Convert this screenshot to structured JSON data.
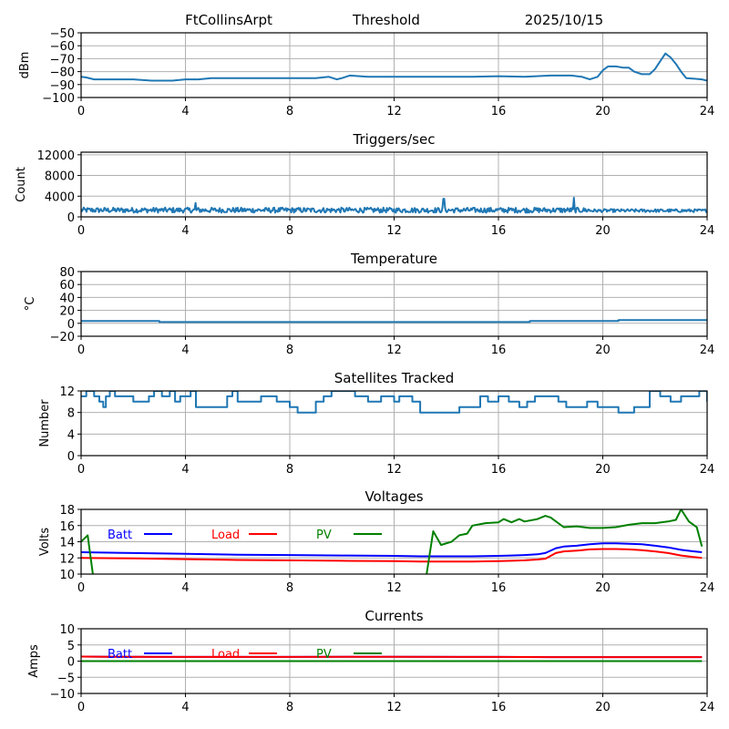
{
  "header": {
    "station": "FtCollinsArpt",
    "panel_title": "Threshold",
    "date": "2025/10/15"
  },
  "chart_data": [
    {
      "type": "line",
      "id": "threshold",
      "title": "",
      "xlabel": "",
      "ylabel": "dBm",
      "xlim": [
        0,
        24
      ],
      "ylim": [
        -100,
        -50
      ],
      "xticks": [
        0,
        4,
        8,
        12,
        16,
        20,
        24
      ],
      "yticks": [
        -50,
        -60,
        -70,
        -80,
        -90,
        -100
      ],
      "ytick_labels": [
        "−50",
        "−60",
        "−70",
        "−80",
        "−90",
        "−100"
      ],
      "grid": true,
      "series": [
        {
          "name": "Threshold",
          "color": "#1f77b4",
          "x": [
            0,
            0.2,
            0.5,
            1,
            2,
            2.7,
            3.5,
            4,
            4.5,
            5,
            6,
            7,
            8,
            8.5,
            9,
            9.5,
            9.8,
            10,
            10.3,
            11,
            12,
            13,
            14,
            15,
            16,
            17,
            18,
            18.8,
            19.2,
            19.5,
            19.8,
            20,
            20.2,
            20.5,
            20.8,
            21,
            21.2,
            21.5,
            21.8,
            22,
            22.2,
            22.4,
            22.6,
            22.8,
            23,
            23.2,
            23.5,
            23.8,
            24
          ],
          "y": [
            -84,
            -84.5,
            -86,
            -86,
            -86,
            -87,
            -87,
            -86,
            -86,
            -85,
            -85,
            -85,
            -85,
            -85,
            -85,
            -84,
            -86,
            -85,
            -83,
            -84,
            -84,
            -84,
            -84,
            -84,
            -83.5,
            -84,
            -83,
            -83,
            -84,
            -86,
            -84,
            -79,
            -76,
            -76,
            -77,
            -77,
            -80,
            -82,
            -82,
            -78,
            -72,
            -66,
            -69,
            -74,
            -80,
            -85,
            -85.5,
            -86,
            -87
          ]
        }
      ]
    },
    {
      "type": "line",
      "id": "triggers",
      "title": "Triggers/sec",
      "xlabel": "",
      "ylabel": "Count",
      "xlim": [
        0,
        24
      ],
      "ylim": [
        0,
        12500
      ],
      "xticks": [
        0,
        4,
        8,
        12,
        16,
        20,
        24
      ],
      "yticks": [
        0,
        4000,
        8000,
        12000
      ],
      "ytick_labels": [
        "0",
        "4000",
        "8000",
        "12000"
      ],
      "grid": true,
      "series": [
        {
          "name": "Triggers/sec",
          "color": "#1f77b4",
          "mean": 1300,
          "noise_amplitude": 1000,
          "spikes": [
            {
              "x": 4.4,
              "y": 2700
            },
            {
              "x": 13.9,
              "y": 3500
            },
            {
              "x": 18.9,
              "y": 3700
            }
          ],
          "quiet_segment": {
            "x0": 19.5,
            "x1": 24,
            "mean": 1200,
            "noise_amplitude": 600
          }
        }
      ]
    },
    {
      "type": "line",
      "id": "temperature",
      "title": "Temperature",
      "xlabel": "",
      "ylabel": "°C",
      "xlim": [
        0,
        24
      ],
      "ylim": [
        -20,
        80
      ],
      "xticks": [
        0,
        4,
        8,
        12,
        16,
        20,
        24
      ],
      "yticks": [
        -20,
        0,
        20,
        40,
        60,
        80
      ],
      "ytick_labels": [
        "−20",
        "0",
        "20",
        "40",
        "60",
        "80"
      ],
      "grid": true,
      "series": [
        {
          "name": "Temperature",
          "color": "#1f77b4",
          "x": [
            0,
            3.0,
            3.0,
            17.2,
            17.2,
            20.6,
            20.6,
            24
          ],
          "y": [
            3.5,
            3.5,
            2,
            2,
            3.5,
            3.5,
            5,
            5
          ]
        }
      ]
    },
    {
      "type": "line",
      "id": "satellites",
      "title": "Satellites Tracked",
      "xlabel": "",
      "ylabel": "Number",
      "xlim": [
        0,
        24
      ],
      "ylim": [
        0,
        12
      ],
      "xticks": [
        0,
        4,
        8,
        12,
        16,
        20,
        24
      ],
      "yticks": [
        0,
        4,
        8,
        12
      ],
      "ytick_labels": [
        "0",
        "4",
        "8",
        "12"
      ],
      "grid": true,
      "series": [
        {
          "name": "Satellites",
          "color": "#1f77b4",
          "x": [
            0,
            0.2,
            0.5,
            0.7,
            0.85,
            0.95,
            1.1,
            1.3,
            2.0,
            2.6,
            2.8,
            3.1,
            3.4,
            3.6,
            3.8,
            4.2,
            4.4,
            4.6,
            5.3,
            5.6,
            5.8,
            6.0,
            6.5,
            6.9,
            7.2,
            7.5,
            8.0,
            8.3,
            8.6,
            9.0,
            9.3,
            9.6,
            9.9,
            10.5,
            11.0,
            11.5,
            12.0,
            12.2,
            12.7,
            13.0,
            13.3,
            14.0,
            14.5,
            15.0,
            15.3,
            15.6,
            16.0,
            16.4,
            16.8,
            17.1,
            17.4,
            18.0,
            18.3,
            18.6,
            19.0,
            19.4,
            19.8,
            20.2,
            20.6,
            21.2,
            21.5,
            21.8,
            22.2,
            22.6,
            23.0,
            23.4,
            23.7,
            24.0
          ],
          "y": [
            11,
            12,
            11,
            10,
            9,
            11,
            12,
            11,
            10,
            11,
            12,
            11,
            12,
            10,
            11,
            12,
            9,
            9,
            9,
            11,
            12,
            10,
            10,
            11,
            11,
            10,
            9,
            8,
            8,
            10,
            11,
            12,
            12,
            11,
            10,
            11,
            10,
            11,
            10,
            8,
            8,
            8,
            9,
            9,
            11,
            10,
            11,
            10,
            9,
            10,
            11,
            11,
            10,
            9,
            9,
            10,
            9,
            9,
            8,
            9,
            9,
            12,
            11,
            10,
            11,
            11,
            12,
            10
          ]
        }
      ]
    },
    {
      "type": "line",
      "id": "voltages",
      "title": "Voltages",
      "xlabel": "",
      "ylabel": "Volts",
      "xlim": [
        0,
        24
      ],
      "ylim": [
        10,
        18
      ],
      "xticks": [
        0,
        4,
        8,
        12,
        16,
        20,
        24
      ],
      "yticks": [
        10,
        12,
        14,
        16,
        18
      ],
      "ytick_labels": [
        "10",
        "12",
        "14",
        "16",
        "18"
      ],
      "grid": true,
      "legend": {
        "placement": "top-left",
        "entries": [
          "Batt",
          "Load",
          "PV"
        ]
      },
      "series": [
        {
          "name": "Batt",
          "color": "#0000ff",
          "x": [
            0,
            2,
            4,
            6,
            8,
            10,
            12,
            13,
            14,
            15,
            16,
            16.5,
            17,
            17.5,
            17.8,
            18.2,
            18.5,
            19,
            19.5,
            20,
            20.5,
            21,
            21.5,
            22,
            22.5,
            23,
            23.5,
            23.8
          ],
          "y": [
            12.7,
            12.6,
            12.5,
            12.4,
            12.35,
            12.3,
            12.25,
            12.2,
            12.2,
            12.2,
            12.25,
            12.3,
            12.35,
            12.45,
            12.6,
            13.2,
            13.4,
            13.5,
            13.7,
            13.8,
            13.8,
            13.75,
            13.7,
            13.5,
            13.3,
            13.0,
            12.8,
            12.7
          ]
        },
        {
          "name": "Load",
          "color": "#ff0000",
          "x": [
            0,
            2,
            4,
            6,
            8,
            10,
            12,
            13,
            14,
            15,
            16,
            16.5,
            17,
            17.5,
            17.8,
            18.2,
            18.5,
            19,
            19.5,
            20,
            20.5,
            21,
            21.5,
            22,
            22.5,
            23,
            23.5,
            23.8
          ],
          "y": [
            12.0,
            11.95,
            11.85,
            11.75,
            11.7,
            11.65,
            11.6,
            11.55,
            11.55,
            11.55,
            11.6,
            11.65,
            11.7,
            11.8,
            11.9,
            12.6,
            12.8,
            12.9,
            13.05,
            13.1,
            13.1,
            13.05,
            12.95,
            12.8,
            12.6,
            12.3,
            12.1,
            12.0
          ]
        },
        {
          "name": "PV",
          "color": "#008000",
          "x": [
            0,
            0.25,
            0.45,
            0.6,
            13.2,
            13.5,
            13.8,
            14.2,
            14.5,
            14.8,
            15.0,
            15.5,
            16.0,
            16.2,
            16.5,
            16.8,
            17.0,
            17.5,
            17.8,
            18.0,
            18.5,
            19.0,
            19.5,
            20.0,
            20.5,
            21.0,
            21.5,
            22.0,
            22.5,
            22.8,
            23.0,
            23.3,
            23.6,
            23.8
          ],
          "y": [
            14.0,
            14.8,
            10.0,
            9.0,
            9.0,
            15.3,
            13.6,
            14.0,
            14.8,
            15.0,
            16.0,
            16.3,
            16.4,
            16.8,
            16.4,
            16.8,
            16.5,
            16.8,
            17.2,
            17.0,
            15.8,
            15.9,
            15.7,
            15.7,
            15.8,
            16.1,
            16.3,
            16.3,
            16.5,
            16.7,
            18.0,
            16.5,
            15.8,
            13.4
          ]
        }
      ]
    },
    {
      "type": "line",
      "id": "currents",
      "title": "Currents",
      "xlabel": "",
      "ylabel": "Amps",
      "xlim": [
        0,
        24
      ],
      "ylim": [
        -10,
        10
      ],
      "xticks": [
        0,
        4,
        8,
        12,
        16,
        20,
        24
      ],
      "yticks": [
        -10,
        -5,
        0,
        5,
        10
      ],
      "ytick_labels": [
        "−10",
        "−5",
        "0",
        "5",
        "10"
      ],
      "grid": true,
      "legend": {
        "placement": "top-left",
        "entries": [
          "Batt",
          "Load",
          "PV"
        ]
      },
      "series": [
        {
          "name": "Batt",
          "color": "#0000ff",
          "x": [
            0,
            1,
            4,
            8,
            12,
            16,
            18,
            20,
            23.8
          ],
          "y": [
            1.4,
            1.35,
            1.3,
            1.3,
            1.35,
            1.3,
            1.25,
            1.25,
            1.25
          ]
        },
        {
          "name": "Load",
          "color": "#ff0000",
          "x": [
            0,
            1,
            4,
            8,
            12,
            16,
            18,
            20,
            23.8
          ],
          "y": [
            1.4,
            1.35,
            1.3,
            1.3,
            1.35,
            1.3,
            1.25,
            1.25,
            1.25
          ]
        },
        {
          "name": "PV",
          "color": "#008000",
          "x": [
            0,
            23.8
          ],
          "y": [
            0,
            0
          ]
        }
      ]
    }
  ]
}
